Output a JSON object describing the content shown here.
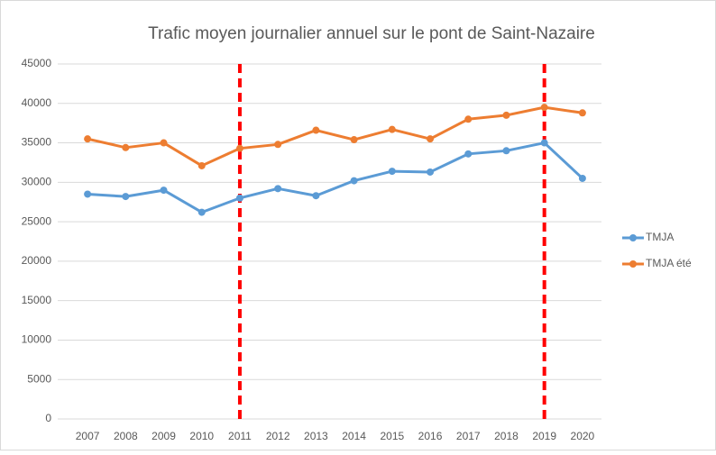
{
  "chart_data": {
    "type": "line",
    "title": "Trafic moyen journalier annuel sur le pont de Saint-Nazaire",
    "categories": [
      "2007",
      "2008",
      "2009",
      "2010",
      "2011",
      "2012",
      "2013",
      "2014",
      "2015",
      "2016",
      "2017",
      "2018",
      "2019",
      "2020"
    ],
    "series": [
      {
        "name": "TMJA",
        "color": "#5b9bd5",
        "values": [
          28500,
          28200,
          29000,
          26200,
          28000,
          29200,
          28300,
          30200,
          31400,
          31300,
          33600,
          34000,
          35000,
          30500
        ]
      },
      {
        "name": "TMJA été",
        "color": "#ed7d31",
        "values": [
          35500,
          34400,
          35000,
          32100,
          34300,
          34800,
          36600,
          35400,
          36700,
          35500,
          38000,
          38500,
          39500,
          38800
        ]
      }
    ],
    "ylim": [
      0,
      45000
    ],
    "yticks": [
      0,
      5000,
      10000,
      15000,
      20000,
      25000,
      30000,
      35000,
      40000,
      45000
    ],
    "grid": true,
    "legend": "right",
    "reference_lines": {
      "categories": [
        "2011",
        "2019"
      ],
      "color": "#ff0000"
    }
  }
}
